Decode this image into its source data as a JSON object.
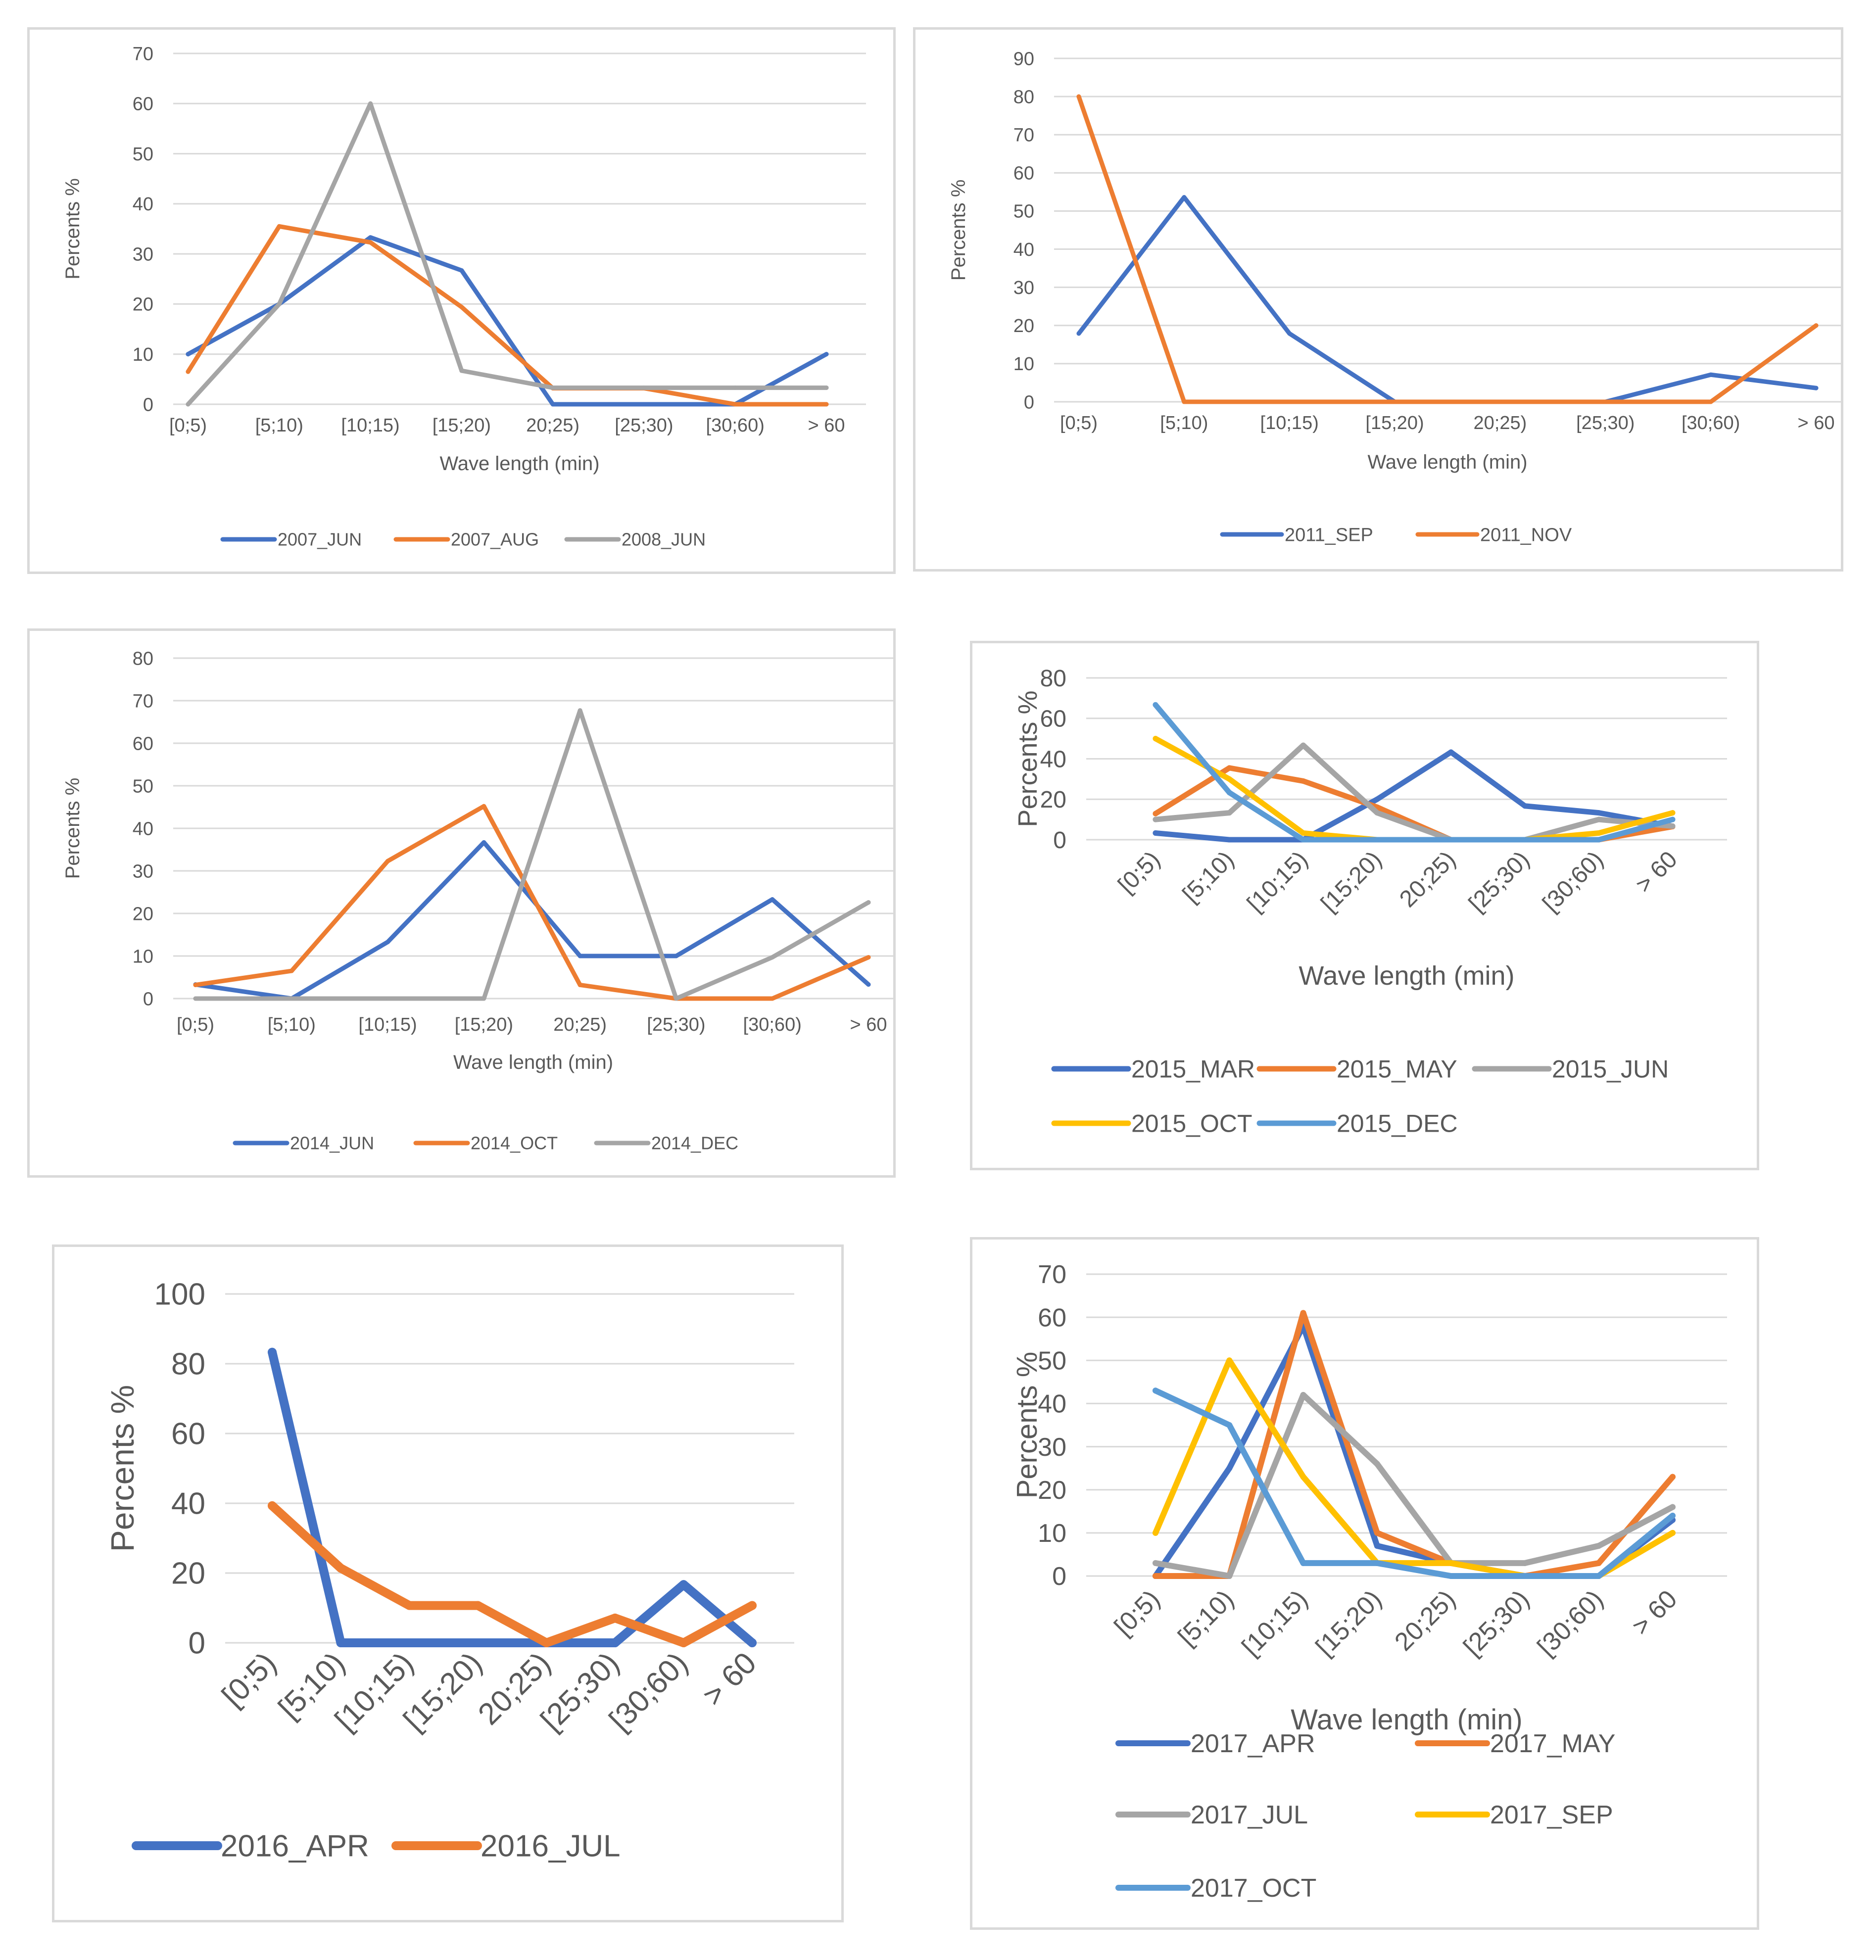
{
  "colors": {
    "blue": "#4472C4",
    "orange": "#ED7D31",
    "gray": "#A5A5A5",
    "yellow": "#FFC000",
    "lightblue": "#5B9BD5",
    "grid": "#d9d9d9"
  },
  "chart_data": [
    {
      "type": "line",
      "categories": [
        "[0;5)",
        "[5;10)",
        "[10;15)",
        "[15;20)",
        "20;25)",
        "[25;30)",
        "[30;60)",
        "> 60"
      ],
      "xlabel": "Wave length (min)",
      "ylabel": "Percents %",
      "ylim": [
        0,
        70
      ],
      "ystep": 10,
      "series": [
        {
          "name": "2007_JUN",
          "color": "blue",
          "values": [
            10,
            20,
            33.3,
            26.7,
            0,
            0,
            0,
            10
          ]
        },
        {
          "name": "2007_AUG",
          "color": "orange",
          "values": [
            6.5,
            35.5,
            32.3,
            19.4,
            3.2,
            3.2,
            0,
            0
          ]
        },
        {
          "name": "2008_JUN",
          "color": "gray",
          "values": [
            0,
            20,
            60,
            6.7,
            3.3,
            3.3,
            3.3,
            3.3
          ]
        }
      ]
    },
    {
      "type": "line",
      "categories": [
        "[0;5)",
        "[5;10)",
        "[10;15)",
        "[15;20)",
        "20;25)",
        "[25;30)",
        "[30;60)",
        "> 60"
      ],
      "xlabel": "Wave length (min)",
      "ylabel": "Percents %",
      "ylim": [
        0,
        90
      ],
      "ystep": 10,
      "series": [
        {
          "name": "2011_SEP",
          "color": "blue",
          "values": [
            17.9,
            53.6,
            17.9,
            0,
            0,
            0,
            7.1,
            3.6
          ]
        },
        {
          "name": "2011_NOV",
          "color": "orange",
          "values": [
            80,
            0,
            0,
            0,
            0,
            0,
            0,
            20
          ]
        }
      ]
    },
    {
      "type": "line",
      "categories": [
        "[0;5)",
        "[5;10)",
        "[10;15)",
        "[15;20)",
        "20;25)",
        "[25;30)",
        "[30;60)",
        "> 60"
      ],
      "xlabel": "Wave length (min)",
      "ylabel": "Percents %",
      "ylim": [
        0,
        80
      ],
      "ystep": 10,
      "series": [
        {
          "name": "2014_JUN",
          "color": "blue",
          "values": [
            3.3,
            0,
            13.3,
            36.7,
            10,
            10,
            23.3,
            3.3
          ]
        },
        {
          "name": "2014_OCT",
          "color": "orange",
          "values": [
            3.2,
            6.5,
            32.3,
            45.2,
            3.2,
            0,
            0,
            9.7
          ]
        },
        {
          "name": "2014_DEC",
          "color": "gray",
          "values": [
            0,
            0,
            0,
            0,
            67.7,
            0,
            9.7,
            22.6
          ]
        }
      ]
    },
    {
      "type": "line",
      "categories": [
        "[0;5)",
        "[5;10)",
        "[10;15)",
        "[15;20)",
        "20;25)",
        "[25;30)",
        "[30;60)",
        "> 60"
      ],
      "xlabel": "Wave length (min)",
      "ylabel": "Percents %",
      "ylim": [
        0,
        80
      ],
      "ystep": 20,
      "series": [
        {
          "name": "2015_MAR",
          "color": "blue",
          "values": [
            3.3,
            0,
            0,
            20,
            43.3,
            16.7,
            13.3,
            6.7
          ]
        },
        {
          "name": "2015_MAY",
          "color": "orange",
          "values": [
            12.9,
            35.5,
            29,
            16.1,
            0,
            0,
            0,
            6.5
          ]
        },
        {
          "name": "2015_JUN",
          "color": "gray",
          "values": [
            10,
            13.3,
            46.7,
            13.3,
            0,
            0,
            10,
            6.7
          ]
        },
        {
          "name": "2015_OCT",
          "color": "yellow",
          "values": [
            50,
            30,
            3.3,
            0,
            0,
            0,
            3.3,
            13.3
          ]
        },
        {
          "name": "2015_DEC",
          "color": "lightblue",
          "values": [
            66.7,
            23.3,
            0,
            0,
            0,
            0,
            0,
            10
          ]
        }
      ]
    },
    {
      "type": "line",
      "categories": [
        "[0;5)",
        "[5;10)",
        "[10;15)",
        "[15;20)",
        "20;25)",
        "[25;30)",
        "[30;60)",
        "> 60"
      ],
      "xlabel": "",
      "ylabel": "Percents %",
      "ylim": [
        0,
        100
      ],
      "ystep": 20,
      "series": [
        {
          "name": "2016_APR",
          "color": "blue",
          "values": [
            83.3,
            0,
            0,
            0,
            0,
            0,
            16.7,
            0
          ]
        },
        {
          "name": "2016_JUL",
          "color": "orange",
          "values": [
            39.3,
            21.4,
            10.7,
            10.7,
            0,
            7.1,
            0,
            10.7
          ]
        }
      ]
    },
    {
      "type": "line",
      "categories": [
        "[0;5)",
        "[5;10)",
        "[10;15)",
        "[15;20)",
        "20;25)",
        "[25;30)",
        "[30;60)",
        "> 60"
      ],
      "xlabel": "Wave length (min)",
      "ylabel": "Percents %",
      "ylim": [
        0,
        70
      ],
      "ystep": 10,
      "series": [
        {
          "name": "2017_APR",
          "color": "blue",
          "values": [
            0,
            25,
            58,
            7,
            3,
            0,
            0,
            13
          ]
        },
        {
          "name": "2017_MAY",
          "color": "orange",
          "values": [
            0,
            0,
            61,
            10,
            3,
            0,
            3,
            23
          ]
        },
        {
          "name": "2017_JUL",
          "color": "gray",
          "values": [
            3,
            0,
            42,
            26,
            3,
            3,
            7,
            16
          ]
        },
        {
          "name": "2017_SEP",
          "color": "yellow",
          "values": [
            10,
            50,
            23,
            3,
            3,
            0,
            0,
            10
          ]
        },
        {
          "name": "2017_OCT",
          "color": "lightblue",
          "values": [
            43,
            35,
            3,
            3,
            0,
            0,
            0,
            14
          ]
        }
      ]
    }
  ]
}
